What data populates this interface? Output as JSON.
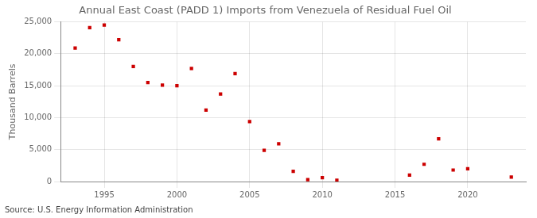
{
  "chart_data": {
    "type": "scatter",
    "title": "Annual East Coast (PADD 1) Imports from Venezuela of Residual Fuel Oil",
    "y_label": "Thousand Barrels",
    "annotations": [
      "Source: U.S. Energy Information Administration"
    ],
    "x": [
      1993,
      1994,
      1995,
      1996,
      1997,
      1998,
      1999,
      2000,
      2001,
      2002,
      2003,
      2004,
      2005,
      2006,
      2007,
      2008,
      2009,
      2010,
      2011,
      2016,
      2017,
      2018,
      2019,
      2020,
      2023
    ],
    "values": [
      20900,
      24100,
      24500,
      22200,
      18000,
      15500,
      15100,
      15000,
      17700,
      11200,
      13700,
      16900,
      9400,
      4900,
      5900,
      1600,
      300,
      600,
      200,
      1000,
      2700,
      6700,
      1800,
      2000,
      700
    ],
    "color": "#cc0000",
    "marker": "square",
    "xlim": [
      1992,
      2024
    ],
    "ylim": [
      0,
      25000
    ],
    "xticks": [
      1995,
      2000,
      2005,
      2010,
      2015,
      2020
    ],
    "yticks": [
      0,
      {
        "value": 5000,
        "label": "5,000"
      },
      {
        "value": 10000,
        "label": "10,000"
      },
      {
        "value": 15000,
        "label": "15,000"
      },
      {
        "value": 20000,
        "label": "20,000"
      },
      {
        "value": 25000,
        "label": "25,000"
      }
    ],
    "grid": true
  }
}
